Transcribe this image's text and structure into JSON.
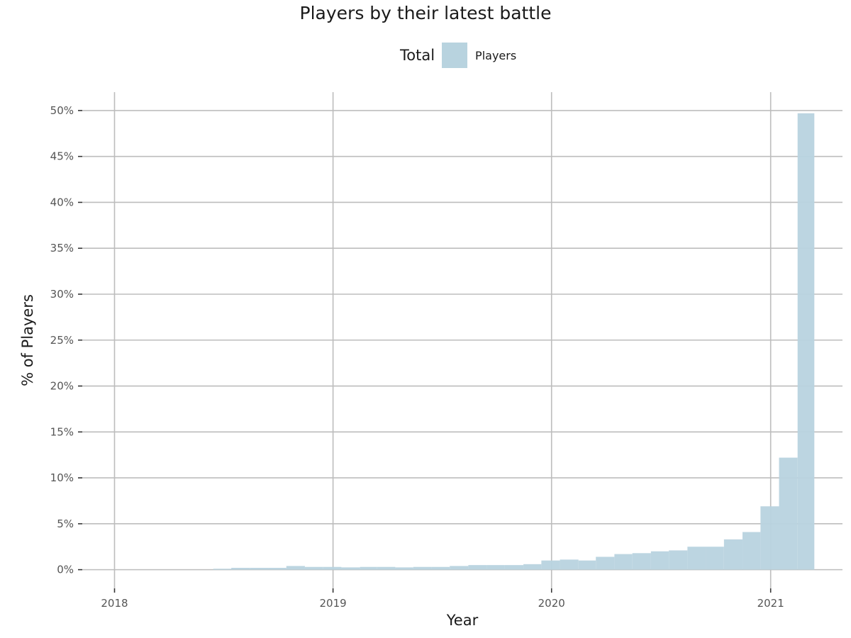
{
  "chart_data": {
    "type": "bar",
    "title": "Players by their latest battle",
    "xlabel": "Year",
    "ylabel": "% of Players",
    "legend": {
      "title": "Total",
      "placement": "top",
      "entries": [
        {
          "label": "Players",
          "color": "#b8d3df"
        }
      ]
    },
    "x_ticks": [
      "2018",
      "2019",
      "2020",
      "2021"
    ],
    "y_ticks": [
      "0%",
      "5%",
      "10%",
      "15%",
      "20%",
      "25%",
      "30%",
      "35%",
      "40%",
      "45%",
      "50%"
    ],
    "xlim": [
      "2017-11-01",
      "2021-05-01"
    ],
    "ylim": [
      -2.5,
      52
    ],
    "grid": true,
    "series": [
      {
        "name": "Players",
        "color": "#b8d3df",
        "bars": [
          {
            "start": "2018-06-15",
            "end": "2018-07-15",
            "value": 0.1
          },
          {
            "start": "2018-07-15",
            "end": "2018-08-15",
            "value": 0.2
          },
          {
            "start": "2018-08-15",
            "end": "2018-09-15",
            "value": 0.2
          },
          {
            "start": "2018-09-15",
            "end": "2018-10-15",
            "value": 0.2
          },
          {
            "start": "2018-10-15",
            "end": "2018-11-15",
            "value": 0.4
          },
          {
            "start": "2018-11-15",
            "end": "2018-12-15",
            "value": 0.3
          },
          {
            "start": "2018-12-15",
            "end": "2019-01-15",
            "value": 0.3
          },
          {
            "start": "2019-01-15",
            "end": "2019-02-15",
            "value": 0.25
          },
          {
            "start": "2019-02-15",
            "end": "2019-03-15",
            "value": 0.3
          },
          {
            "start": "2019-03-15",
            "end": "2019-04-15",
            "value": 0.3
          },
          {
            "start": "2019-04-15",
            "end": "2019-05-15",
            "value": 0.25
          },
          {
            "start": "2019-05-15",
            "end": "2019-06-15",
            "value": 0.3
          },
          {
            "start": "2019-06-15",
            "end": "2019-07-15",
            "value": 0.3
          },
          {
            "start": "2019-07-15",
            "end": "2019-08-15",
            "value": 0.4
          },
          {
            "start": "2019-08-15",
            "end": "2019-09-15",
            "value": 0.5
          },
          {
            "start": "2019-09-15",
            "end": "2019-10-15",
            "value": 0.5
          },
          {
            "start": "2019-10-15",
            "end": "2019-11-15",
            "value": 0.5
          },
          {
            "start": "2019-11-15",
            "end": "2019-12-15",
            "value": 0.6
          },
          {
            "start": "2019-12-15",
            "end": "2020-01-15",
            "value": 1.0
          },
          {
            "start": "2020-01-15",
            "end": "2020-02-15",
            "value": 1.1
          },
          {
            "start": "2020-02-15",
            "end": "2020-03-15",
            "value": 1.0
          },
          {
            "start": "2020-03-15",
            "end": "2020-04-15",
            "value": 1.4
          },
          {
            "start": "2020-04-15",
            "end": "2020-05-15",
            "value": 1.7
          },
          {
            "start": "2020-05-15",
            "end": "2020-06-15",
            "value": 1.8
          },
          {
            "start": "2020-06-15",
            "end": "2020-07-15",
            "value": 2.0
          },
          {
            "start": "2020-07-15",
            "end": "2020-08-15",
            "value": 2.1
          },
          {
            "start": "2020-08-15",
            "end": "2020-09-15",
            "value": 2.5
          },
          {
            "start": "2020-09-15",
            "end": "2020-10-15",
            "value": 2.5
          },
          {
            "start": "2020-10-15",
            "end": "2020-11-15",
            "value": 3.3
          },
          {
            "start": "2020-11-15",
            "end": "2020-12-15",
            "value": 4.1
          },
          {
            "start": "2020-12-15",
            "end": "2021-01-15",
            "value": 6.9
          },
          {
            "start": "2021-01-15",
            "end": "2021-02-15",
            "value": 12.2
          },
          {
            "start": "2021-02-15",
            "end": "2021-03-15",
            "value": 49.7
          }
        ]
      }
    ]
  }
}
